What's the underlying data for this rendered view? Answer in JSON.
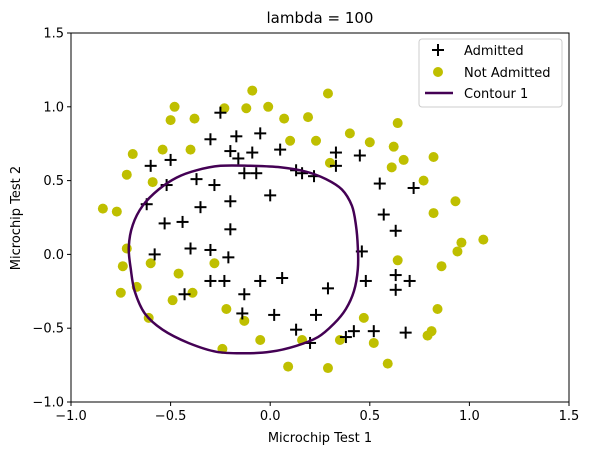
{
  "chart_data": {
    "type": "scatter",
    "title": "lambda = 100",
    "xlabel": "Microchip Test 1",
    "ylabel": "Microchip Test 2",
    "xlim": [
      -1.0,
      1.5
    ],
    "ylim": [
      -1.0,
      1.5
    ],
    "xticks": [
      "−1.0",
      "−0.5",
      "0.0",
      "0.5",
      "1.0",
      "1.5"
    ],
    "yticks": [
      "−1.0",
      "−0.5",
      "0.0",
      "0.5",
      "1.0",
      "1.5"
    ],
    "xtick_values": [
      -1.0,
      -0.5,
      0.0,
      0.5,
      1.0,
      1.5
    ],
    "ytick_values": [
      -1.0,
      -0.5,
      0.0,
      0.5,
      1.0,
      1.5
    ],
    "grid": false,
    "legend_position": "top-right",
    "colors": {
      "admitted": "#000000",
      "not_admitted": "#bfbf00",
      "contour": "#440154"
    },
    "series": [
      {
        "name": "Admitted",
        "marker": "plus",
        "points": [
          [
            -0.25,
            0.96
          ],
          [
            -0.3,
            0.78
          ],
          [
            -0.17,
            0.8
          ],
          [
            -0.05,
            0.82
          ],
          [
            0.05,
            0.71
          ],
          [
            -0.2,
            0.7
          ],
          [
            -0.16,
            0.65
          ],
          [
            -0.09,
            0.69
          ],
          [
            -0.5,
            0.64
          ],
          [
            -0.6,
            0.6
          ],
          [
            -0.37,
            0.51
          ],
          [
            -0.52,
            0.47
          ],
          [
            -0.28,
            0.47
          ],
          [
            -0.13,
            0.55
          ],
          [
            -0.07,
            0.55
          ],
          [
            0.13,
            0.57
          ],
          [
            0.16,
            0.55
          ],
          [
            0.22,
            0.53
          ],
          [
            0.33,
            0.69
          ],
          [
            0.33,
            0.6
          ],
          [
            0.45,
            0.67
          ],
          [
            0.55,
            0.48
          ],
          [
            0.57,
            0.27
          ],
          [
            0.63,
            0.16
          ],
          [
            0.72,
            0.45
          ],
          [
            -0.62,
            0.34
          ],
          [
            -0.53,
            0.21
          ],
          [
            -0.44,
            0.22
          ],
          [
            -0.35,
            0.32
          ],
          [
            -0.2,
            0.36
          ],
          [
            0.0,
            0.4
          ],
          [
            -0.2,
            0.17
          ],
          [
            -0.58,
            0.0
          ],
          [
            -0.4,
            0.04
          ],
          [
            -0.3,
            0.03
          ],
          [
            -0.21,
            -0.02
          ],
          [
            0.46,
            0.02
          ],
          [
            -0.3,
            -0.18
          ],
          [
            -0.23,
            -0.18
          ],
          [
            -0.05,
            -0.18
          ],
          [
            0.06,
            -0.16
          ],
          [
            0.63,
            -0.14
          ],
          [
            0.7,
            -0.18
          ],
          [
            0.48,
            -0.18
          ],
          [
            0.63,
            -0.24
          ],
          [
            0.29,
            -0.23
          ],
          [
            -0.13,
            -0.27
          ],
          [
            -0.43,
            -0.27
          ],
          [
            -0.14,
            -0.4
          ],
          [
            0.02,
            -0.41
          ],
          [
            0.23,
            -0.41
          ],
          [
            0.13,
            -0.51
          ],
          [
            0.42,
            -0.52
          ],
          [
            0.52,
            -0.52
          ],
          [
            0.68,
            -0.53
          ],
          [
            0.38,
            -0.56
          ],
          [
            0.2,
            -0.6
          ]
        ]
      },
      {
        "name": "Not Admitted",
        "marker": "circle",
        "points": [
          [
            -0.48,
            1.0
          ],
          [
            -0.5,
            0.91
          ],
          [
            -0.38,
            0.92
          ],
          [
            -0.09,
            1.11
          ],
          [
            -0.23,
            0.99
          ],
          [
            -0.12,
            0.99
          ],
          [
            -0.01,
            1.0
          ],
          [
            0.07,
            0.92
          ],
          [
            0.19,
            0.93
          ],
          [
            0.29,
            1.09
          ],
          [
            -0.69,
            0.68
          ],
          [
            -0.54,
            0.71
          ],
          [
            -0.4,
            0.71
          ],
          [
            0.1,
            0.77
          ],
          [
            0.23,
            0.77
          ],
          [
            0.4,
            0.82
          ],
          [
            0.5,
            0.76
          ],
          [
            0.64,
            0.89
          ],
          [
            0.62,
            0.73
          ],
          [
            0.61,
            0.59
          ],
          [
            0.67,
            0.64
          ],
          [
            0.3,
            0.62
          ],
          [
            -0.72,
            0.54
          ],
          [
            -0.59,
            0.49
          ],
          [
            0.82,
            0.66
          ],
          [
            0.77,
            0.5
          ],
          [
            -0.84,
            0.31
          ],
          [
            -0.77,
            0.29
          ],
          [
            0.82,
            0.28
          ],
          [
            0.93,
            0.36
          ],
          [
            -0.72,
            0.04
          ],
          [
            -0.74,
            -0.08
          ],
          [
            0.96,
            0.08
          ],
          [
            0.94,
            0.02
          ],
          [
            1.07,
            0.1
          ],
          [
            -0.6,
            -0.06
          ],
          [
            -0.46,
            -0.13
          ],
          [
            -0.28,
            -0.06
          ],
          [
            0.86,
            -0.08
          ],
          [
            0.64,
            -0.04
          ],
          [
            -0.67,
            -0.22
          ],
          [
            -0.75,
            -0.26
          ],
          [
            -0.49,
            -0.31
          ],
          [
            -0.39,
            -0.26
          ],
          [
            0.84,
            -0.37
          ],
          [
            -0.61,
            -0.43
          ],
          [
            -0.22,
            -0.37
          ],
          [
            -0.13,
            -0.45
          ],
          [
            0.47,
            -0.43
          ],
          [
            0.81,
            -0.52
          ],
          [
            0.79,
            -0.55
          ],
          [
            -0.24,
            -0.64
          ],
          [
            -0.05,
            -0.58
          ],
          [
            0.16,
            -0.58
          ],
          [
            0.35,
            -0.58
          ],
          [
            0.52,
            -0.6
          ],
          [
            0.09,
            -0.76
          ],
          [
            0.29,
            -0.77
          ],
          [
            0.59,
            -0.74
          ]
        ]
      },
      {
        "name": "Contour 1",
        "marker": "line",
        "points": [
          [
            -0.25,
            0.6
          ],
          [
            -0.1,
            0.6
          ],
          [
            0.05,
            0.59
          ],
          [
            0.18,
            0.56
          ],
          [
            0.28,
            0.51
          ],
          [
            0.36,
            0.44
          ],
          [
            0.41,
            0.33
          ],
          [
            0.43,
            0.2
          ],
          [
            0.44,
            0.05
          ],
          [
            0.44,
            -0.1
          ],
          [
            0.42,
            -0.25
          ],
          [
            0.38,
            -0.37
          ],
          [
            0.32,
            -0.47
          ],
          [
            0.24,
            -0.56
          ],
          [
            0.13,
            -0.62
          ],
          [
            0.0,
            -0.66
          ],
          [
            -0.13,
            -0.67
          ],
          [
            -0.27,
            -0.66
          ],
          [
            -0.41,
            -0.6
          ],
          [
            -0.54,
            -0.51
          ],
          [
            -0.63,
            -0.4
          ],
          [
            -0.68,
            -0.25
          ],
          [
            -0.7,
            -0.1
          ],
          [
            -0.71,
            0.05
          ],
          [
            -0.69,
            0.2
          ],
          [
            -0.64,
            0.33
          ],
          [
            -0.56,
            0.44
          ],
          [
            -0.47,
            0.52
          ],
          [
            -0.37,
            0.57
          ],
          [
            -0.25,
            0.6
          ]
        ]
      }
    ]
  }
}
